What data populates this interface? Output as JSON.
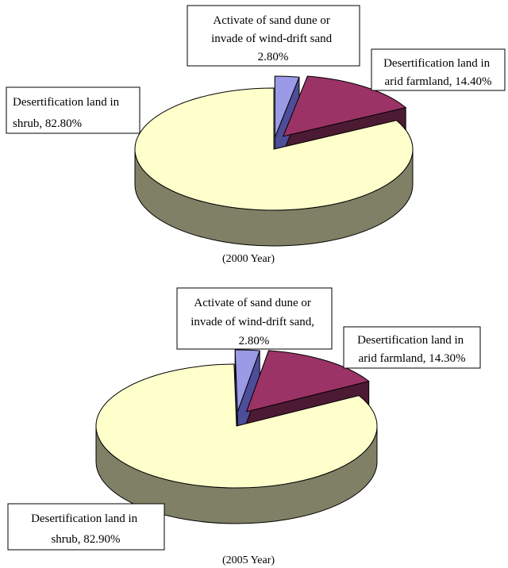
{
  "chart_data": [
    {
      "type": "pie",
      "caption": "(2000 Year)",
      "slices": [
        {
          "category": "Activate of sand dune or invade of wind-drift sand",
          "value": 2.8,
          "label_lines": [
            "Activate of sand dune or",
            "invade of wind-drift sand",
            "2.80%"
          ]
        },
        {
          "category": "Desertification land in arid farmland",
          "value": 14.4,
          "label_lines": [
            "Desertification land in",
            "arid farmland, 14.40%"
          ]
        },
        {
          "category": "Desertification land in shrub",
          "value": 82.8,
          "label_lines": [
            "Desertification land in",
            "shrub, 82.80%"
          ]
        }
      ]
    },
    {
      "type": "pie",
      "caption": "(2005 Year)",
      "slices": [
        {
          "category": "Activate of sand dune or invade of wind-drift sand",
          "value": 2.8,
          "label_lines": [
            "Activate of sand dune or",
            "invade of wind-drift sand,",
            "2.80%"
          ]
        },
        {
          "category": "Desertification land in arid farmland",
          "value": 14.3,
          "label_lines": [
            "Desertification land in",
            "arid farmland, 14.30%"
          ]
        },
        {
          "category": "Desertification land in shrub",
          "value": 82.9,
          "label_lines": [
            "Desertification land in",
            "shrub, 82.90%"
          ]
        }
      ]
    }
  ],
  "colors": {
    "sand_top": "#9a9ae6",
    "sand_side": "#4d4d99",
    "farm_top": "#9b3366",
    "farm_side": "#4d1a33",
    "shrub_top": "#ffffcc",
    "shrub_side": "#808066",
    "outline": "#000000"
  }
}
